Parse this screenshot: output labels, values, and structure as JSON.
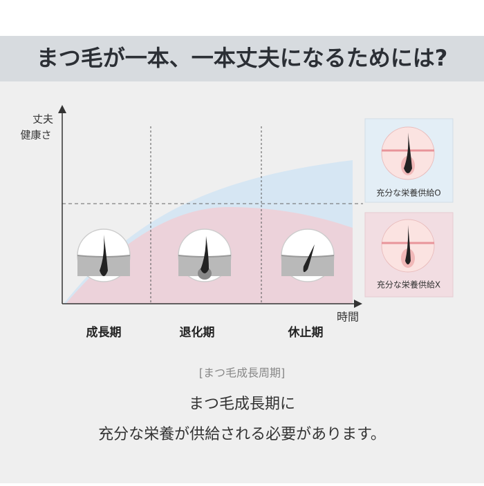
{
  "header": {
    "title": "まつ毛が一本、一本丈夫になるためには?"
  },
  "diagram": {
    "y_axis_label": [
      "丈夫",
      "健康さ"
    ],
    "x_axis_label": "時間",
    "phases": [
      "成長期",
      "退化期",
      "休止期"
    ],
    "legend": [
      "充分な栄養供給O",
      "充分な栄養供給X"
    ],
    "caption": "[まつ毛成長周期]"
  },
  "message": [
    "まつ毛成長期に",
    "充分な栄養が供給される必要があります。"
  ]
}
